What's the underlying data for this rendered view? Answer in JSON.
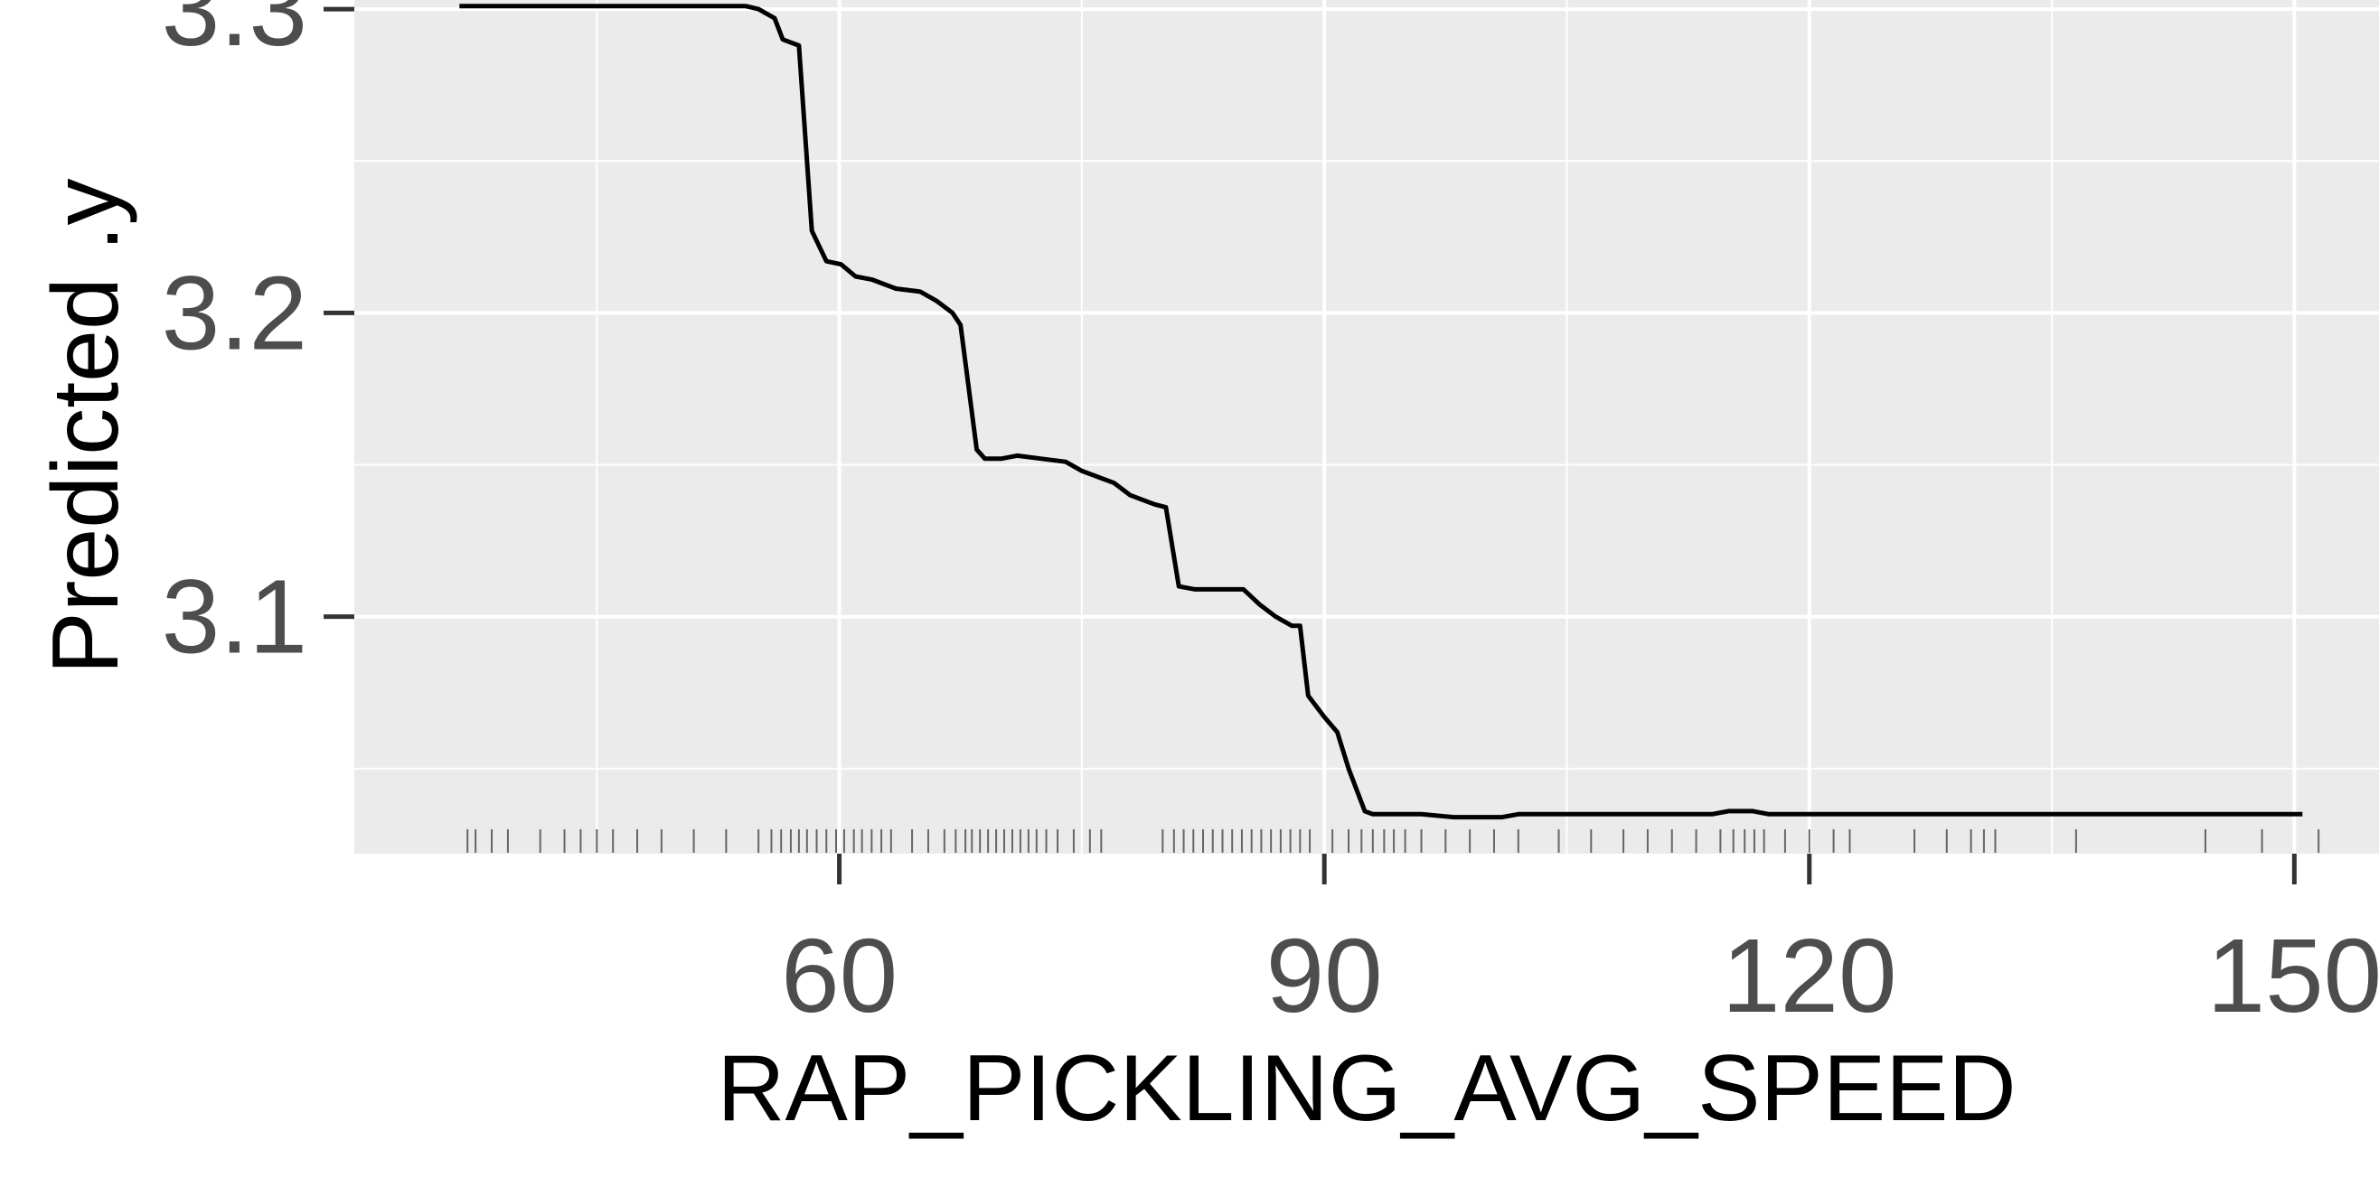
{
  "chart_data": {
    "type": "line",
    "title": "",
    "xlabel": "RAP_PICKLING_AVG_SPEED",
    "ylabel": "Predicted .y",
    "xlim": [
      30,
      153
    ],
    "ylim": [
      3.022,
      3.303
    ],
    "x_ticks": [
      60,
      90,
      120,
      150
    ],
    "x_tick_labels": [
      "60",
      "90",
      "120",
      "150"
    ],
    "y_ticks": [
      3.1,
      3.2,
      3.3
    ],
    "y_tick_labels": [
      "3.1",
      "3.2",
      "3.3"
    ],
    "grid": true,
    "legend": "none",
    "colors": {
      "panel": "#ebebeb",
      "grid": "#ffffff",
      "line": "#000000",
      "rug": "#666666",
      "tick_text": "#4d4d4d"
    },
    "series": [
      {
        "x": [
          36.5,
          54.2,
          55.0,
          56.0,
          56.5,
          57.5,
          58.3,
          59.2,
          60.1,
          61.0,
          62.0,
          63.5,
          65.0,
          66.0,
          67.0,
          67.5,
          68.5,
          69.0,
          70.0,
          71.0,
          72.5,
          74.0,
          75.0,
          76.0,
          77.0,
          78.0,
          79.5,
          80.2,
          81.0,
          82.0,
          83.0,
          84.0,
          85.0,
          86.0,
          87.0,
          88.0,
          88.5,
          89.0,
          90.0,
          90.8,
          91.5,
          92.5,
          93.0,
          94.0,
          96.0,
          98.0,
          100.0,
          101.0,
          102.0,
          105.0,
          110.0,
          114.0,
          115.0,
          116.5,
          117.5,
          118.0,
          125.0,
          135.0,
          145.0,
          150.5
        ],
        "y": [
          3.301,
          3.301,
          3.3,
          3.297,
          3.29,
          3.288,
          3.227,
          3.217,
          3.216,
          3.212,
          3.211,
          3.208,
          3.207,
          3.204,
          3.2,
          3.196,
          3.155,
          3.152,
          3.152,
          3.153,
          3.152,
          3.151,
          3.148,
          3.146,
          3.144,
          3.14,
          3.137,
          3.136,
          3.11,
          3.109,
          3.109,
          3.109,
          3.109,
          3.104,
          3.1,
          3.097,
          3.097,
          3.074,
          3.067,
          3.062,
          3.05,
          3.036,
          3.035,
          3.035,
          3.035,
          3.034,
          3.034,
          3.034,
          3.035,
          3.035,
          3.035,
          3.035,
          3.036,
          3.036,
          3.035,
          3.035,
          3.035,
          3.035,
          3.035,
          3.035
        ]
      }
    ],
    "rug_x": [
      37.0,
      37.5,
      38.5,
      39.5,
      41.5,
      43.0,
      44.0,
      45.0,
      46.0,
      47.5,
      49.0,
      51.0,
      53.0,
      55.0,
      55.8,
      56.4,
      57.0,
      57.5,
      58.0,
      58.6,
      59.2,
      59.8,
      60.3,
      60.9,
      61.4,
      62.0,
      62.6,
      63.2,
      64.5,
      65.5,
      66.5,
      67.2,
      67.8,
      68.2,
      68.7,
      69.2,
      69.7,
      70.2,
      70.7,
      71.2,
      71.7,
      72.2,
      72.8,
      73.5,
      74.5,
      75.5,
      76.2,
      80.0,
      80.7,
      81.3,
      81.9,
      82.5,
      83.1,
      83.7,
      84.3,
      84.9,
      85.5,
      86.1,
      86.7,
      87.3,
      87.9,
      88.5,
      89.1,
      90.5,
      91.5,
      92.3,
      93.0,
      93.7,
      94.3,
      95.0,
      96.0,
      97.5,
      99.0,
      100.5,
      102.0,
      104.5,
      106.5,
      108.5,
      110.0,
      111.5,
      113.0,
      114.5,
      115.3,
      116.0,
      116.6,
      117.2,
      118.5,
      120.0,
      121.5,
      122.5,
      126.5,
      128.5,
      130.0,
      130.8,
      131.5,
      136.5,
      144.5,
      148.0,
      151.5
    ]
  }
}
